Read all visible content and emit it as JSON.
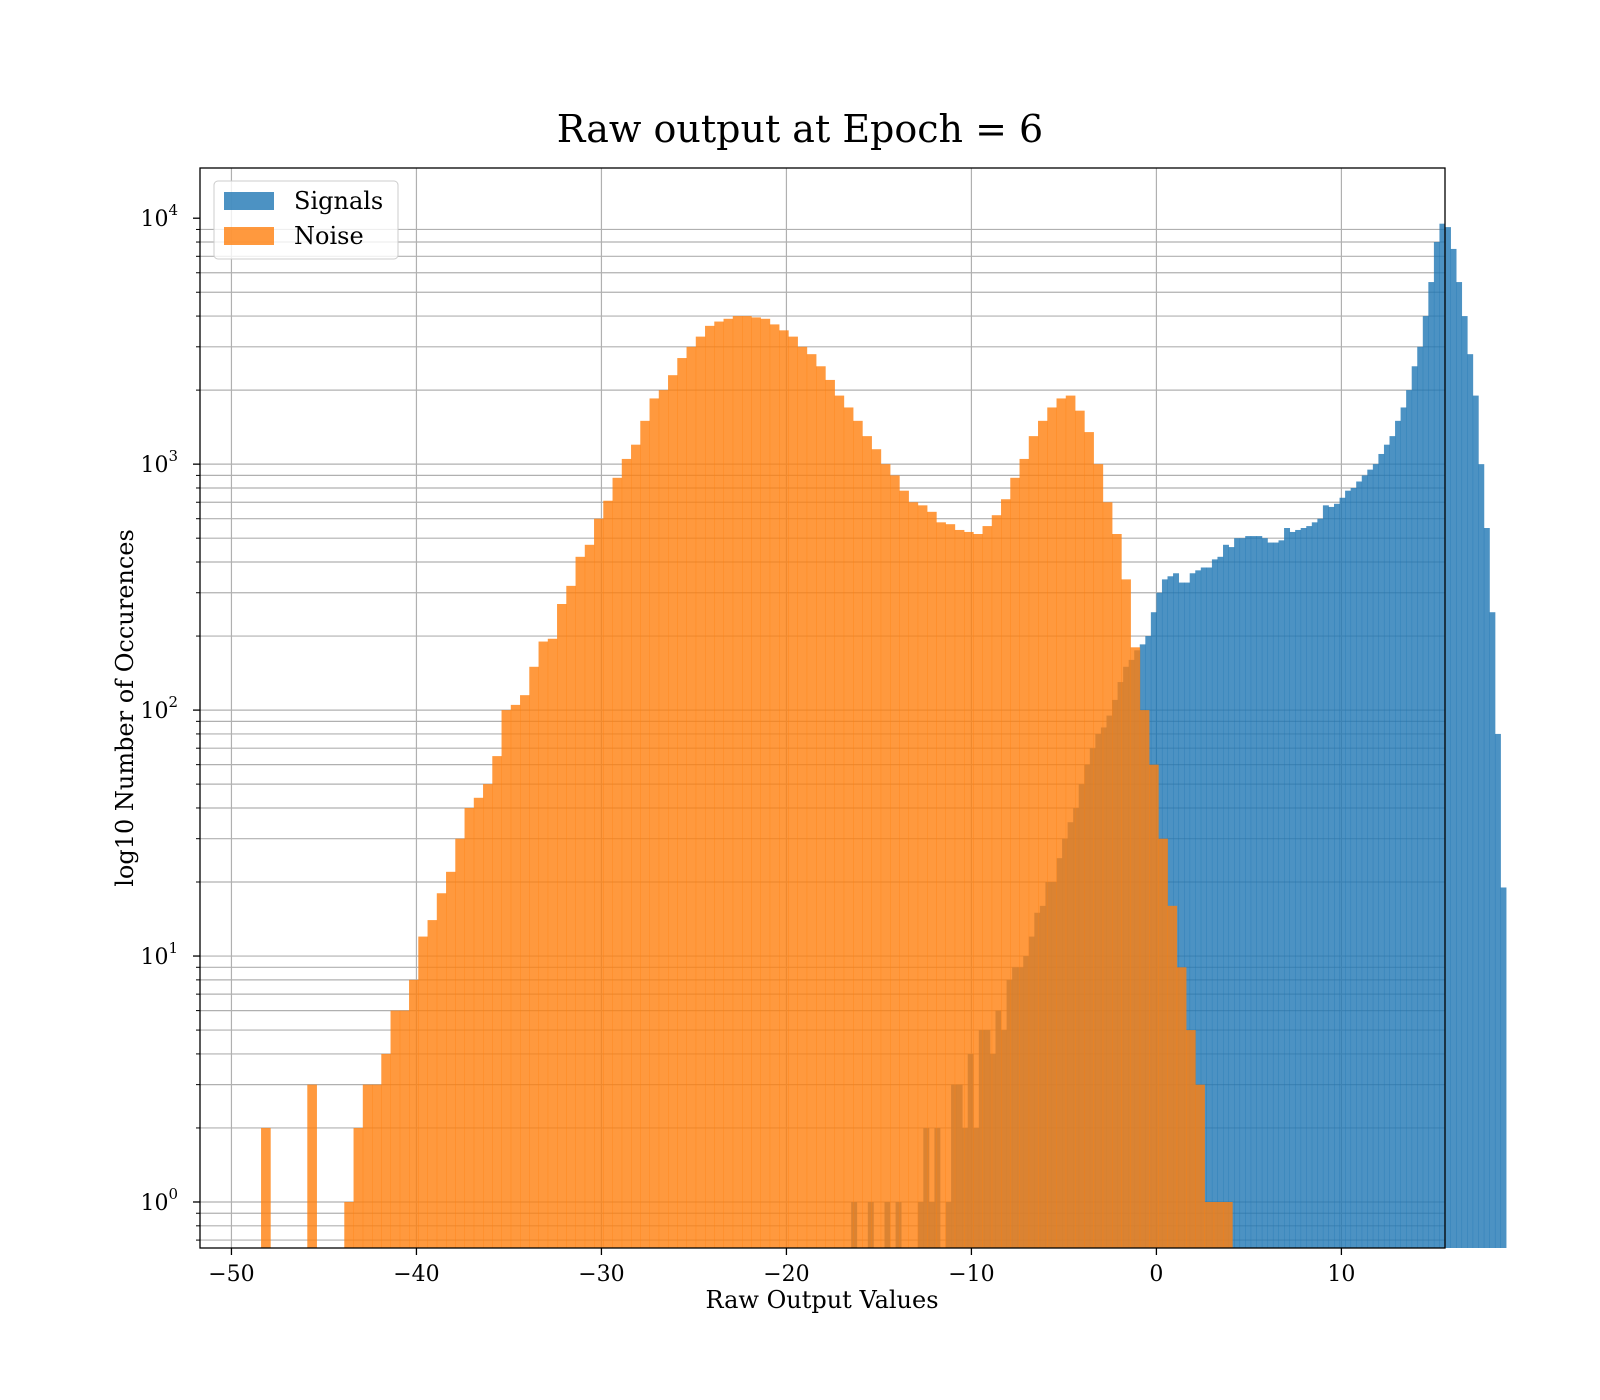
{
  "chart_data": {
    "type": "bar",
    "title": "Raw output at Epoch = 6",
    "xlabel": "Raw Output Values",
    "ylabel": "log10 Number of Occurences",
    "y_scale": "log",
    "xlim": [
      -51.7,
      15.6
    ],
    "ylim": [
      0.65,
      16000
    ],
    "x_ticks": [
      -50,
      -40,
      -30,
      -20,
      -10,
      0,
      10
    ],
    "x_tick_labels": [
      "−50",
      "−40",
      "−30",
      "−20",
      "−10",
      "0",
      "10"
    ],
    "y_ticks": [
      {
        "value": 1,
        "base": "10",
        "exp": "0"
      },
      {
        "value": 10,
        "base": "10",
        "exp": "1"
      },
      {
        "value": 100,
        "base": "10",
        "exp": "2"
      },
      {
        "value": 1000,
        "base": "10",
        "exp": "3"
      },
      {
        "value": 10000,
        "base": "10",
        "exp": "4"
      }
    ],
    "grid": true,
    "legend_position": "upper-left",
    "series": [
      {
        "name": "Signals",
        "color": "#1f77b4",
        "alpha": 0.8,
        "bin_start": -16.5,
        "bin_width": 0.3,
        "counts": [
          1,
          0,
          0,
          1,
          0,
          0,
          1,
          0,
          1,
          0,
          0,
          0,
          1,
          2,
          1,
          2,
          0,
          1,
          3,
          3,
          2,
          4,
          2,
          5,
          5,
          4,
          6,
          5,
          8,
          9,
          9,
          10,
          12,
          15,
          16,
          20,
          20,
          25,
          30,
          35,
          40,
          50,
          60,
          70,
          80,
          85,
          95,
          110,
          130,
          150,
          160,
          175,
          185,
          200,
          250,
          300,
          340,
          350,
          360,
          330,
          330,
          360,
          370,
          380,
          380,
          410,
          420,
          470,
          460,
          500,
          500,
          510,
          510,
          510,
          500,
          480,
          480,
          490,
          550,
          530,
          540,
          550,
          560,
          580,
          600,
          680,
          670,
          690,
          730,
          780,
          800,
          850,
          900,
          950,
          1000,
          1100,
          1200,
          1300,
          1500,
          1700,
          2000,
          2500,
          3000,
          4000,
          5500,
          8000,
          9500,
          9200,
          7500,
          5500,
          4000,
          2800,
          1900,
          1000,
          550,
          250,
          80,
          19
        ]
      },
      {
        "name": "Noise",
        "color": "#ff7f0e",
        "alpha": 0.8,
        "bin_start": -49.4,
        "bin_width": 0.5,
        "counts": [
          0,
          0,
          2,
          0,
          0,
          0,
          0,
          3,
          0,
          0,
          0,
          1,
          2,
          3,
          3,
          4,
          6,
          6,
          8,
          12,
          14,
          18,
          22,
          30,
          40,
          44,
          50,
          65,
          100,
          105,
          115,
          150,
          190,
          195,
          270,
          320,
          420,
          470,
          600,
          710,
          880,
          1050,
          1200,
          1500,
          1850,
          2000,
          2300,
          2700,
          3000,
          3300,
          3650,
          3800,
          3900,
          4000,
          4000,
          3950,
          3900,
          3700,
          3500,
          3300,
          3000,
          2800,
          2500,
          2200,
          1900,
          1700,
          1500,
          1300,
          1150,
          1000,
          900,
          780,
          700,
          680,
          640,
          580,
          570,
          540,
          530,
          520,
          560,
          620,
          720,
          880,
          1050,
          1300,
          1500,
          1700,
          1850,
          1900,
          1650,
          1350,
          1000,
          700,
          520,
          340,
          180,
          100,
          60,
          30,
          16,
          9,
          5,
          3,
          1,
          1,
          1,
          0,
          0,
          0,
          0,
          0,
          0
        ]
      },
      {
        "name": "",
        "color": "#d62728",
        "alpha": 0.0,
        "bin_start": 0,
        "bin_width": 0,
        "counts": []
      }
    ]
  }
}
